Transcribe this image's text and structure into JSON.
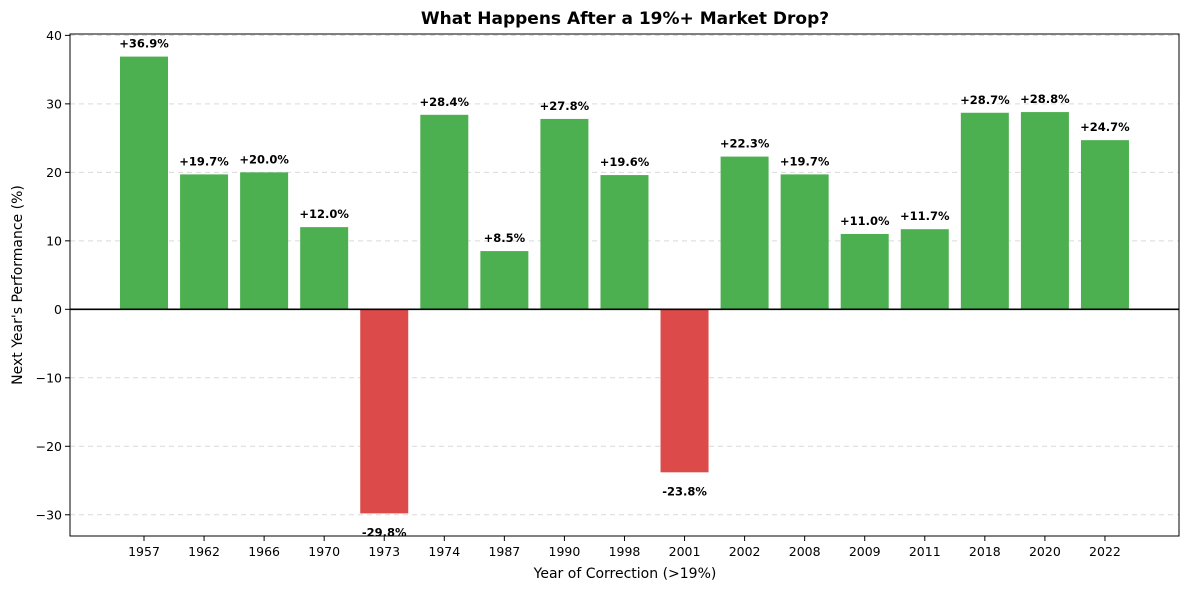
{
  "chart_data": {
    "type": "bar",
    "title": "What Happens After a 19%+ Market Drop?",
    "xlabel": "Year of Correction (>19%)",
    "ylabel": "Next Year's Performance (%)",
    "categories": [
      "1957",
      "1962",
      "1966",
      "1970",
      "1973",
      "1974",
      "1987",
      "1990",
      "1998",
      "2001",
      "2002",
      "2008",
      "2009",
      "2011",
      "2018",
      "2020",
      "2022"
    ],
    "values": [
      36.9,
      19.7,
      20.0,
      12.0,
      -29.8,
      28.4,
      8.5,
      27.8,
      19.6,
      -23.8,
      22.3,
      19.7,
      11.0,
      11.7,
      28.7,
      28.8,
      24.7
    ],
    "value_labels": [
      "+36.9%",
      "+19.7%",
      "+20.0%",
      "+12.0%",
      "-29.8%",
      "+28.4%",
      "+8.5%",
      "+27.8%",
      "+19.6%",
      "-23.8%",
      "+22.3%",
      "+19.7%",
      "+11.0%",
      "+11.7%",
      "+28.7%",
      "+28.8%",
      "+24.7%"
    ],
    "ylim": [
      -33.1,
      40.2
    ],
    "yticks": [
      -30,
      -20,
      -10,
      0,
      10,
      20,
      30,
      40
    ],
    "ytick_labels": [
      "−30",
      "−20",
      "−10",
      "0",
      "10",
      "20",
      "30",
      "40"
    ],
    "grid": true,
    "colors": {
      "positive": "#4caf50",
      "negative": "#dc4a4a",
      "zero_line": "#000000",
      "grid": "#d9d9d9"
    }
  }
}
